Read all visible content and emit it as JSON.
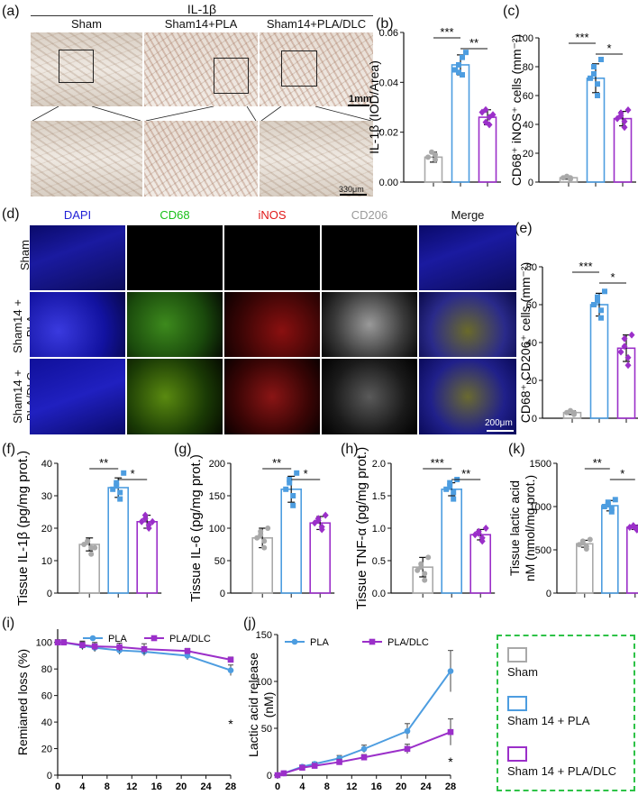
{
  "labels": {
    "a": "(a)",
    "b": "(b)",
    "c": "(c)",
    "d": "(d)",
    "e": "(e)",
    "f": "(f)",
    "g": "(g)",
    "h": "(h)",
    "i": "(i)",
    "j": "(j)",
    "k": "(k)"
  },
  "panel_a": {
    "title": "IL-1β",
    "columns": [
      "Sham",
      "Sham14+PLA",
      "Sham14+PLA/DLC"
    ],
    "scalebar_top": "1mm",
    "scalebar_bottom": "330μm"
  },
  "panel_d": {
    "columns": [
      "DAPI",
      "CD68",
      "iNOS",
      "CD206",
      "Merge"
    ],
    "column_colors": [
      "#1f1fd6",
      "#19c019",
      "#e01818",
      "#9a9a9a",
      "#111111"
    ],
    "rows": [
      "Sham",
      "Sham14 +\nPLA",
      "Sham14 +\nPLA/DLC"
    ],
    "scalebar": "200μm"
  },
  "colors": {
    "sham": "#a9a9a9",
    "pla": "#4d9de0",
    "pladlc": "#9b2fc9",
    "legend_border": "#2ec247"
  },
  "legend": [
    "Sham",
    "Sham 14 + PLA",
    "Sham 14 + PLA/DLC"
  ],
  "chart_data": [
    {
      "id": "b",
      "type": "bar",
      "ylabel": "IL-1β (IOD/Area)",
      "ylim": [
        0,
        0.06
      ],
      "yticks": [
        "0.00",
        "0.02",
        "0.04",
        "0.06"
      ],
      "ytickvals": [
        0,
        0.02,
        0.04,
        0.06
      ],
      "categories": [
        "Sham",
        "Sham14+PLA",
        "Sham14+PLA/DLC"
      ],
      "values": [
        0.01,
        0.047,
        0.026
      ],
      "errors": [
        0.002,
        0.004,
        0.003
      ],
      "points": [
        [
          0.009,
          0.011,
          0.01,
          0.012
        ],
        [
          0.043,
          0.05,
          0.045,
          0.047,
          0.044,
          0.052
        ],
        [
          0.023,
          0.026,
          0.028,
          0.024,
          0.029,
          0.027
        ]
      ],
      "sig": [
        {
          "from": 0,
          "to": 1,
          "text": "***"
        },
        {
          "from": 1,
          "to": 2,
          "text": "**"
        }
      ]
    },
    {
      "id": "c",
      "type": "bar",
      "ylabel": "CD68⁺ iNOS⁺ cells (mm⁻²)",
      "ylim": [
        0,
        100
      ],
      "yticks": [
        "0",
        "20",
        "40",
        "60",
        "80",
        "100"
      ],
      "ytickvals": [
        0,
        20,
        40,
        60,
        80,
        100
      ],
      "categories": [
        "Sham",
        "Sham14+PLA",
        "Sham14+PLA/DLC"
      ],
      "values": [
        3,
        72,
        44
      ],
      "errors": [
        1,
        10,
        5
      ],
      "points": [
        [
          2,
          3,
          3,
          4
        ],
        [
          60,
          68,
          72,
          75,
          80,
          85
        ],
        [
          38,
          42,
          44,
          46,
          48,
          50
        ]
      ],
      "sig": [
        {
          "from": 0,
          "to": 1,
          "text": "***"
        },
        {
          "from": 1,
          "to": 2,
          "text": "*"
        }
      ]
    },
    {
      "id": "e",
      "type": "bar",
      "ylabel": "CD68⁺ CD206⁺ cells (mm⁻²)",
      "ylim": [
        0,
        80
      ],
      "yticks": [
        "0",
        "20",
        "40",
        "60",
        "80"
      ],
      "ytickvals": [
        0,
        20,
        40,
        60,
        80
      ],
      "categories": [
        "Sham",
        "Sham14+PLA",
        "Sham14+PLA/DLC"
      ],
      "values": [
        3,
        60,
        37
      ],
      "errors": [
        1,
        6,
        7
      ],
      "points": [
        [
          2,
          3,
          3,
          4
        ],
        [
          53,
          57,
          60,
          62,
          64,
          67
        ],
        [
          28,
          32,
          35,
          38,
          42,
          44
        ]
      ],
      "sig": [
        {
          "from": 0,
          "to": 1,
          "text": "***"
        },
        {
          "from": 1,
          "to": 2,
          "text": "*"
        }
      ]
    },
    {
      "id": "f",
      "type": "bar",
      "ylabel": "Tissue IL-1β (pg/mg prot.)",
      "ylim": [
        0,
        40
      ],
      "yticks": [
        "0",
        "10",
        "20",
        "30",
        "40"
      ],
      "ytickvals": [
        0,
        10,
        20,
        30,
        40
      ],
      "categories": [
        "Sham",
        "Sham14+PLA",
        "Sham14+PLA/DLC"
      ],
      "values": [
        15,
        32.5,
        22
      ],
      "errors": [
        2,
        3,
        2
      ],
      "points": [
        [
          12,
          14,
          15,
          16,
          16,
          14
        ],
        [
          29,
          31,
          32,
          33,
          34,
          37
        ],
        [
          20,
          21,
          22,
          23,
          24,
          22
        ]
      ],
      "sig": [
        {
          "from": 0,
          "to": 1,
          "text": "**"
        },
        {
          "from": 1,
          "to": 2,
          "text": "*"
        }
      ]
    },
    {
      "id": "g",
      "type": "bar",
      "ylabel": "Tissue IL-6 (pg/mg prot.)",
      "ylim": [
        0,
        200
      ],
      "yticks": [
        "0",
        "50",
        "100",
        "150",
        "200"
      ],
      "ytickvals": [
        0,
        50,
        100,
        150,
        200
      ],
      "categories": [
        "Sham",
        "Sham14+PLA",
        "Sham14+PLA/DLC"
      ],
      "values": [
        85,
        160,
        108
      ],
      "errors": [
        15,
        20,
        10
      ],
      "points": [
        [
          70,
          80,
          85,
          90,
          95,
          100
        ],
        [
          135,
          150,
          160,
          170,
          175,
          185
        ],
        [
          98,
          102,
          108,
          112,
          115,
          120
        ]
      ],
      "sig": [
        {
          "from": 0,
          "to": 1,
          "text": "**"
        },
        {
          "from": 1,
          "to": 2,
          "text": "*"
        }
      ]
    },
    {
      "id": "h",
      "type": "bar",
      "ylabel": "Tissue TNF-α (pg/mg prot.)",
      "ylim": [
        0,
        2.0
      ],
      "yticks": [
        "0.0",
        "0.5",
        "1.0",
        "1.5",
        "2.0"
      ],
      "ytickvals": [
        0,
        0.5,
        1.0,
        1.5,
        2.0
      ],
      "categories": [
        "Sham",
        "Sham14+PLA",
        "Sham14+PLA/DLC"
      ],
      "values": [
        0.4,
        1.6,
        0.9
      ],
      "errors": [
        0.15,
        0.1,
        0.08
      ],
      "points": [
        [
          0.2,
          0.3,
          0.35,
          0.4,
          0.45,
          0.55
        ],
        [
          1.45,
          1.55,
          1.6,
          1.65,
          1.7,
          1.75
        ],
        [
          0.8,
          0.85,
          0.9,
          0.92,
          0.95,
          1.0
        ]
      ],
      "sig": [
        {
          "from": 0,
          "to": 1,
          "text": "***"
        },
        {
          "from": 1,
          "to": 2,
          "text": "**"
        }
      ]
    },
    {
      "id": "k",
      "type": "bar",
      "ylabel": "Tissue lactic acid\nnM (nmol/mg prot.)",
      "ylim": [
        0,
        1500
      ],
      "yticks": [
        "0",
        "500",
        "1000",
        "1500"
      ],
      "ytickvals": [
        0,
        500,
        1000,
        1500
      ],
      "categories": [
        "Sham",
        "Sham14+PLA",
        "Sham14+PLA/DLC"
      ],
      "values": [
        570,
        1010,
        760
      ],
      "errors": [
        40,
        60,
        25
      ],
      "points": [
        [
          510,
          540,
          560,
          580,
          600,
          620
        ],
        [
          940,
          980,
          1000,
          1020,
          1050,
          1080
        ],
        [
          730,
          750,
          760,
          770,
          780,
          790
        ]
      ],
      "sig": [
        {
          "from": 0,
          "to": 1,
          "text": "**"
        },
        {
          "from": 1,
          "to": 2,
          "text": "*"
        }
      ]
    },
    {
      "id": "i",
      "type": "line",
      "ylabel": "Remianed loss (%)",
      "ylim": [
        0,
        110
      ],
      "yticks": [
        "0",
        "20",
        "40",
        "60",
        "80",
        "100"
      ],
      "ytickvals": [
        0,
        20,
        40,
        60,
        80,
        100
      ],
      "xlim": [
        0,
        28
      ],
      "xticks": [
        "0",
        "4",
        "8",
        "12",
        "16",
        "20",
        "24",
        "28"
      ],
      "xtickvals": [
        0,
        4,
        8,
        12,
        16,
        20,
        24,
        28
      ],
      "x": [
        0,
        1,
        4,
        6,
        10,
        14,
        21,
        28
      ],
      "series": [
        {
          "name": "PLA",
          "values": [
            100,
            100,
            97.5,
            96,
            94,
            93,
            90,
            79
          ],
          "errors": [
            2,
            2,
            3,
            3,
            3,
            3,
            3,
            4
          ]
        },
        {
          "name": "PLA/DLC",
          "values": [
            100,
            100,
            98,
            97,
            96.5,
            95,
            93.5,
            87
          ],
          "errors": [
            2,
            2,
            3,
            3,
            3,
            4,
            2,
            2
          ]
        }
      ],
      "annotation": "*"
    },
    {
      "id": "j",
      "type": "line",
      "ylabel": "Lactic acid release\n(nM)",
      "ylim": [
        0,
        150
      ],
      "yticks": [
        "0",
        "50",
        "100",
        "150"
      ],
      "ytickvals": [
        0,
        50,
        100,
        150
      ],
      "xlim": [
        0,
        28
      ],
      "xticks": [
        "0",
        "4",
        "8",
        "12",
        "16",
        "20",
        "24",
        "28"
      ],
      "xtickvals": [
        0,
        4,
        8,
        12,
        16,
        20,
        24,
        28
      ],
      "x": [
        0,
        1,
        4,
        6,
        10,
        14,
        21,
        28
      ],
      "series": [
        {
          "name": "PLA",
          "values": [
            0,
            2,
            9,
            12,
            18,
            28,
            47,
            111
          ],
          "errors": [
            0,
            1,
            2,
            2,
            3,
            4,
            8,
            22
          ]
        },
        {
          "name": "PLA/DLC",
          "values": [
            0,
            2,
            8,
            10,
            14,
            19,
            28,
            46
          ],
          "errors": [
            0,
            1,
            2,
            2,
            3,
            3,
            5,
            14
          ]
        }
      ],
      "annotation": "*"
    }
  ]
}
